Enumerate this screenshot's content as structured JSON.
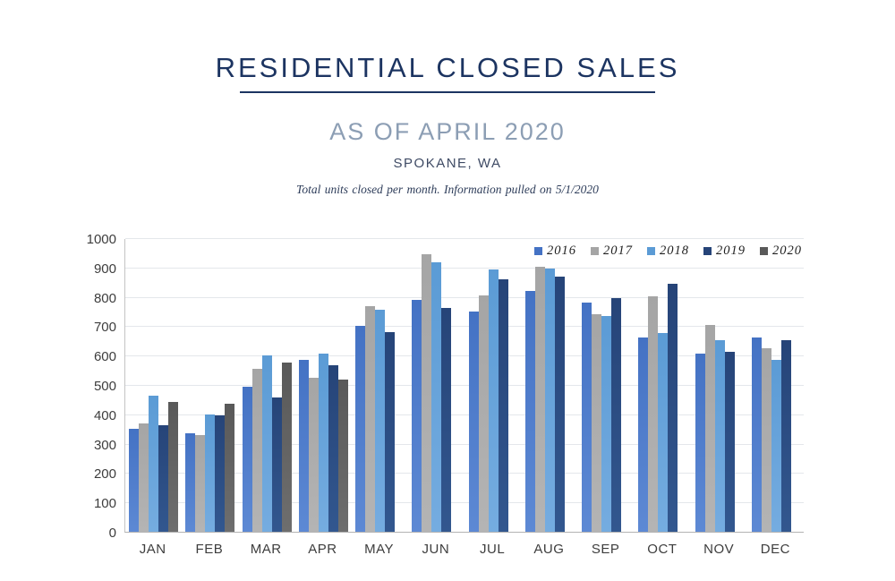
{
  "header": {
    "title": "RESIDENTIAL CLOSED SALES",
    "subtitle": "AS OF APRIL 2020",
    "location": "SPOKANE, WA",
    "note": "Total units closed per month.  Information pulled on 5/1/2020"
  },
  "colors": {
    "title_navy": "#1c3461",
    "subtitle_slate": "#8c9eb4",
    "axis_text": "#3d3d3d",
    "gridline": "#e4e7eb",
    "axis_line": "#b3b3b3"
  },
  "chart_data": {
    "type": "bar",
    "title": "Residential Closed Sales per Month, Spokane WA",
    "categories": [
      "JAN",
      "FEB",
      "MAR",
      "APR",
      "MAY",
      "JUN",
      "JUL",
      "AUG",
      "SEP",
      "OCT",
      "NOV",
      "DEC"
    ],
    "series": [
      {
        "name": "2016",
        "color": "#4472c4",
        "color_light": "#5d89d4",
        "values": [
          350,
          335,
          495,
          585,
          700,
          790,
          750,
          820,
          780,
          663,
          607,
          662
        ]
      },
      {
        "name": "2017",
        "color": "#a5a5a5",
        "color_light": "#b4b4b4",
        "values": [
          370,
          330,
          555,
          525,
          768,
          945,
          806,
          901,
          740,
          801,
          703,
          626
        ]
      },
      {
        "name": "2018",
        "color": "#5b9bd5",
        "color_light": "#75ace0",
        "values": [
          462,
          400,
          601,
          608,
          755,
          918,
          893,
          895,
          736,
          677,
          652,
          586
        ]
      },
      {
        "name": "2019",
        "color": "#264478",
        "color_light": "#32578f",
        "values": [
          362,
          397,
          457,
          566,
          679,
          762,
          860,
          868,
          797,
          845,
          614,
          652
        ]
      },
      {
        "name": "2020",
        "color": "#595959",
        "color_light": "#6e6e6e",
        "values": [
          443,
          437,
          577,
          518,
          null,
          null,
          null,
          null,
          null,
          null,
          null,
          null
        ]
      }
    ],
    "xlabel": "",
    "ylabel": "",
    "ylim": [
      0,
      1000
    ],
    "ytick_step": 100,
    "grid": true,
    "legend_position": "top-right"
  }
}
